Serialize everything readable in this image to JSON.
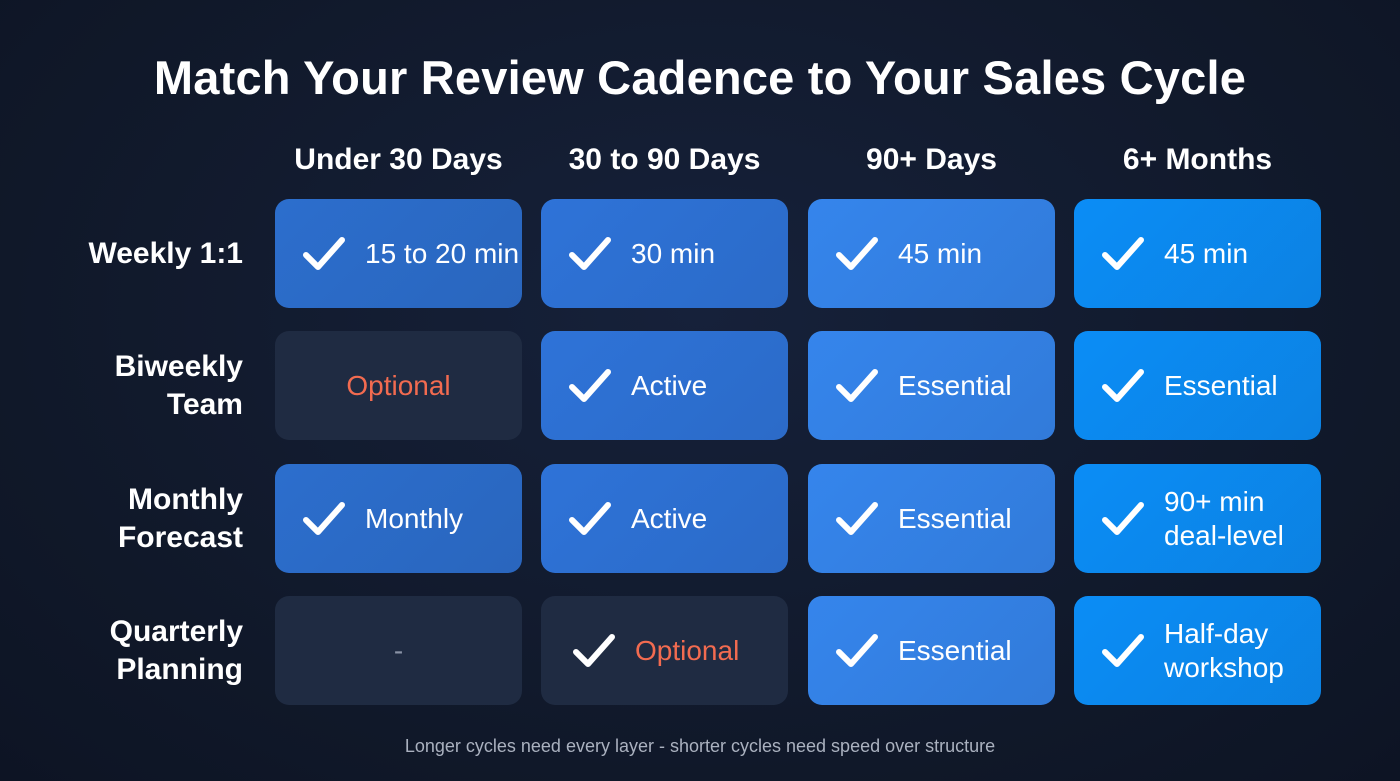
{
  "title": "Match Your Review Cadence to Your Sales Cycle",
  "columns": [
    "Under 30 Days",
    "30 to 90 Days",
    "90+ Days",
    "6+ Months"
  ],
  "column_colors": [
    "#2c6ecd",
    "#2e73d8",
    "#3585ec",
    "#0b8df6"
  ],
  "dark_cell_color": "#1f2b42",
  "optional_color": "#f26b50",
  "rows": [
    {
      "label": [
        "Weekly 1:1"
      ],
      "cells": [
        {
          "text": [
            "15 to 20 min"
          ],
          "check": true,
          "style": "filled"
        },
        {
          "text": [
            "30 min"
          ],
          "check": true,
          "style": "filled"
        },
        {
          "text": [
            "45 min"
          ],
          "check": true,
          "style": "filled"
        },
        {
          "text": [
            "45 min"
          ],
          "check": true,
          "style": "filled"
        }
      ]
    },
    {
      "label": [
        "Biweekly",
        "Team"
      ],
      "cells": [
        {
          "text": [
            "Optional"
          ],
          "check": false,
          "style": "dark-optional"
        },
        {
          "text": [
            "Active"
          ],
          "check": true,
          "style": "filled"
        },
        {
          "text": [
            "Essential"
          ],
          "check": true,
          "style": "filled"
        },
        {
          "text": [
            "Essential"
          ],
          "check": true,
          "style": "filled"
        }
      ]
    },
    {
      "label": [
        "Monthly",
        "Forecast"
      ],
      "cells": [
        {
          "text": [
            "Monthly"
          ],
          "check": true,
          "style": "filled"
        },
        {
          "text": [
            "Active"
          ],
          "check": true,
          "style": "filled"
        },
        {
          "text": [
            "Essential"
          ],
          "check": true,
          "style": "filled"
        },
        {
          "text": [
            "90+ min",
            "deal-level"
          ],
          "check": true,
          "style": "filled"
        }
      ]
    },
    {
      "label": [
        "Quarterly",
        "Planning"
      ],
      "cells": [
        {
          "text": [
            "-"
          ],
          "check": false,
          "style": "dark-empty"
        },
        {
          "text": [
            "Optional"
          ],
          "check": true,
          "style": "dark-optional"
        },
        {
          "text": [
            "Essential"
          ],
          "check": true,
          "style": "filled"
        },
        {
          "text": [
            "Half-day",
            "workshop"
          ],
          "check": true,
          "style": "filled"
        }
      ]
    }
  ],
  "footer": "Longer cycles need every layer - shorter cycles need speed over structure"
}
